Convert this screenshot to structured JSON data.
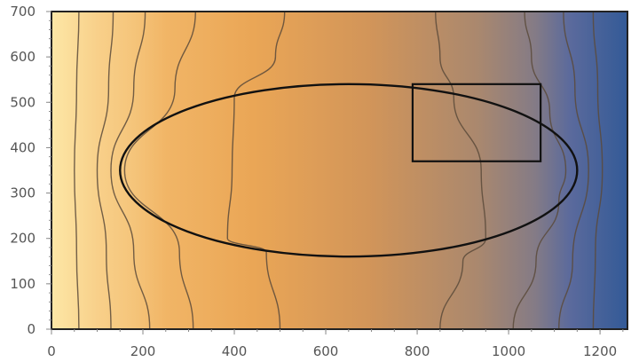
{
  "chart_data": {
    "type": "contour",
    "title": "",
    "xlabel": "",
    "ylabel": "",
    "xlim": [
      0,
      1260
    ],
    "ylim": [
      0,
      700
    ],
    "x_ticks": [
      0,
      200,
      400,
      600,
      800,
      1000,
      1200
    ],
    "y_ticks": [
      0,
      100,
      200,
      300,
      400,
      500,
      600,
      700
    ],
    "x_tick_labels": [
      "0",
      "200",
      "400",
      "600",
      "800",
      "1000",
      "1200"
    ],
    "y_tick_labels": [
      "0",
      "100",
      "200",
      "300",
      "400",
      "500",
      "600",
      "700"
    ],
    "grid": false,
    "legend": "none",
    "color_scale": [
      "#fde7a6",
      "#f8d08a",
      "#f5c57b",
      "#f1b566",
      "#eaa656",
      "#d29559",
      "#aa886e",
      "#847b86",
      "#5b6a9c",
      "#335a97"
    ],
    "contour_lines": [
      [
        [
          60,
          0
        ],
        [
          55,
          170
        ],
        [
          50,
          350
        ],
        [
          55,
          530
        ],
        [
          60,
          700
        ]
      ],
      [
        [
          130,
          0
        ],
        [
          120,
          170
        ],
        [
          100,
          350
        ],
        [
          125,
          530
        ],
        [
          135,
          700
        ]
      ],
      [
        [
          215,
          0
        ],
        [
          180,
          170
        ],
        [
          130,
          350
        ],
        [
          180,
          530
        ],
        [
          205,
          700
        ]
      ],
      [
        [
          310,
          0
        ],
        [
          280,
          170
        ],
        [
          160,
          350
        ],
        [
          270,
          530
        ],
        [
          315,
          700
        ]
      ],
      [
        [
          500,
          0
        ],
        [
          470,
          170
        ],
        [
          385,
          200
        ],
        [
          395,
          350
        ],
        [
          400,
          510
        ],
        [
          490,
          600
        ],
        [
          510,
          700
        ]
      ],
      [
        [
          850,
          0
        ],
        [
          900,
          150
        ],
        [
          950,
          200
        ],
        [
          940,
          350
        ],
        [
          880,
          510
        ],
        [
          850,
          600
        ],
        [
          840,
          700
        ]
      ],
      [
        [
          1010,
          0
        ],
        [
          1060,
          150
        ],
        [
          1110,
          280
        ],
        [
          1125,
          350
        ],
        [
          1090,
          480
        ],
        [
          1050,
          600
        ],
        [
          1035,
          700
        ]
      ],
      [
        [
          1110,
          0
        ],
        [
          1140,
          150
        ],
        [
          1175,
          350
        ],
        [
          1145,
          530
        ],
        [
          1120,
          700
        ]
      ],
      [
        [
          1185,
          0
        ],
        [
          1190,
          170
        ],
        [
          1205,
          350
        ],
        [
          1195,
          530
        ],
        [
          1185,
          700
        ]
      ]
    ],
    "shapes": [
      {
        "type": "ellipse",
        "center": [
          650,
          350
        ],
        "radii": [
          500,
          190
        ]
      },
      {
        "type": "rectangle",
        "x_range": [
          790,
          1070
        ],
        "y_range": [
          370,
          540
        ]
      }
    ]
  }
}
